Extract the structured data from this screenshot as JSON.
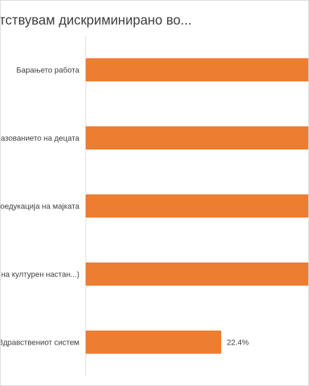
{
  "chart_data": {
    "type": "bar",
    "orientation": "horizontal",
    "title": "тствувам дискриминирано во...",
    "categories": [
      "Барањето работа",
      "азованието на децата",
      "оедукација на мајката",
      ", на културен настан...)",
      "Здравствениот систем"
    ],
    "values": [
      null,
      null,
      null,
      null,
      22.4
    ],
    "data_labels": [
      "",
      "",
      "",
      "",
      "22.4%"
    ],
    "bar_color": "#ED7D31",
    "grid": false,
    "legend": "none"
  }
}
